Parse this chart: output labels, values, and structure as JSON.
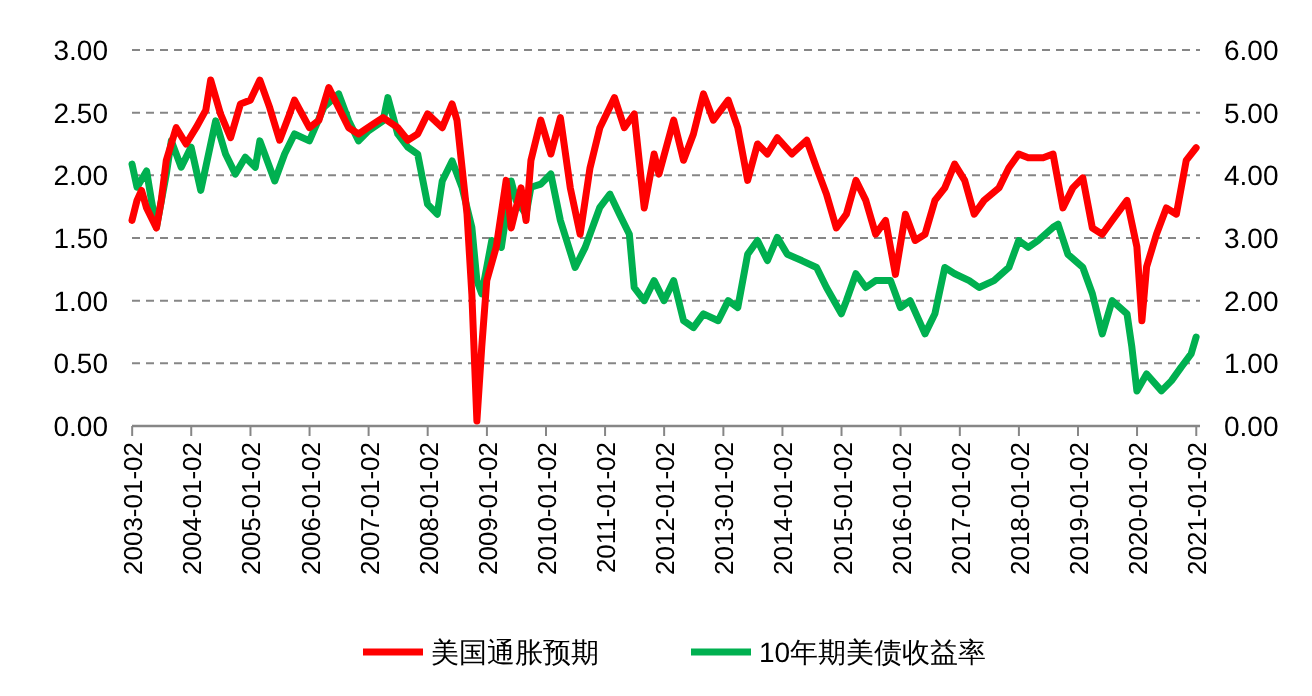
{
  "chart_data": {
    "type": "line",
    "xlim": [
      "2003-01-01",
      "2021-01-25"
    ],
    "xticks": [
      {
        "value": "2003-01-02",
        "label": "2003-01-02"
      },
      {
        "value": "2004-01-02",
        "label": "2004-01-02"
      },
      {
        "value": "2005-01-02",
        "label": "2005-01-02"
      },
      {
        "value": "2006-01-02",
        "label": "2006-01-02"
      },
      {
        "value": "2007-01-02",
        "label": "2007-01-02"
      },
      {
        "value": "2008-01-02",
        "label": "2008-01-02"
      },
      {
        "value": "2009-01-02",
        "label": "2009-01-02"
      },
      {
        "value": "2010-01-02",
        "label": "2010-01-02"
      },
      {
        "value": "2011-01-02",
        "label": "2011-01-02"
      },
      {
        "value": "2012-01-02",
        "label": "2012-01-02"
      },
      {
        "value": "2013-01-02",
        "label": "2013-01-02"
      },
      {
        "value": "2014-01-02",
        "label": "2014-01-02"
      },
      {
        "value": "2015-01-02",
        "label": "2015-01-02"
      },
      {
        "value": "2016-01-02",
        "label": "2016-01-02"
      },
      {
        "value": "2017-01-02",
        "label": "2017-01-02"
      },
      {
        "value": "2018-01-02",
        "label": "2018-01-02"
      },
      {
        "value": "2019-01-02",
        "label": "2019-01-02"
      },
      {
        "value": "2020-01-02",
        "label": "2020-01-02"
      },
      {
        "value": "2021-01-02",
        "label": "2021-01-02"
      }
    ],
    "ylim": [
      0,
      3
    ],
    "yticks": [
      {
        "value": 0,
        "label": "0.00"
      },
      {
        "value": 0.5,
        "label": "0.50"
      },
      {
        "value": 1,
        "label": "1.00"
      },
      {
        "value": 1.5,
        "label": "1.50"
      },
      {
        "value": 2,
        "label": "2.00"
      },
      {
        "value": 2.5,
        "label": "2.50"
      },
      {
        "value": 3,
        "label": "3.00"
      }
    ],
    "y2lim": [
      0,
      6
    ],
    "y2ticks": [
      {
        "value": 0,
        "label": "0.00"
      },
      {
        "value": 1,
        "label": "1.00"
      },
      {
        "value": 2,
        "label": "2.00"
      },
      {
        "value": 3,
        "label": "3.00"
      },
      {
        "value": 4,
        "label": "4.00"
      },
      {
        "value": 5,
        "label": "5.00"
      },
      {
        "value": 6,
        "label": "6.00"
      }
    ],
    "grid": "y",
    "legend": "bottom",
    "series": [
      {
        "name": "美国通胀预期",
        "color": "#ff0000",
        "x": [
          "2003-01",
          "2003-02",
          "2003-03",
          "2003-04",
          "2003-06",
          "2003-07",
          "2003-08",
          "2003-10",
          "2003-12",
          "2004-02",
          "2004-04",
          "2004-05",
          "2004-07",
          "2004-09",
          "2004-11",
          "2005-01",
          "2005-03",
          "2005-05",
          "2005-07",
          "2005-09",
          "2005-10",
          "2006-01",
          "2006-03",
          "2006-05",
          "2006-07",
          "2006-09",
          "2006-11",
          "2007-02",
          "2007-04",
          "2007-07",
          "2007-09",
          "2007-11",
          "2008-01",
          "2008-04",
          "2008-06",
          "2008-07",
          "2008-09",
          "2008-10",
          "2008-11",
          "2008-12",
          "2009-01",
          "2009-03",
          "2009-05",
          "2009-06",
          "2009-08",
          "2009-09",
          "2009-10",
          "2009-12",
          "2010-02",
          "2010-04",
          "2010-06",
          "2010-08",
          "2010-10",
          "2010-12",
          "2011-03",
          "2011-05",
          "2011-07",
          "2011-09",
          "2011-11",
          "2011-12",
          "2012-03",
          "2012-05",
          "2012-07",
          "2012-09",
          "2012-11",
          "2013-02",
          "2013-04",
          "2013-06",
          "2013-08",
          "2013-10",
          "2013-12",
          "2014-03",
          "2014-06",
          "2014-08",
          "2014-10",
          "2014-12",
          "2015-02",
          "2015-04",
          "2015-06",
          "2015-08",
          "2015-10",
          "2015-12",
          "2016-02",
          "2016-04",
          "2016-06",
          "2016-08",
          "2016-10",
          "2016-12",
          "2017-02",
          "2017-04",
          "2017-06",
          "2017-09",
          "2017-11",
          "2018-01",
          "2018-03",
          "2018-06",
          "2018-08",
          "2018-10",
          "2018-12",
          "2019-02",
          "2019-04",
          "2019-06",
          "2019-08",
          "2019-11",
          "2020-01",
          "2020-02",
          "2020-03",
          "2020-05",
          "2020-07",
          "2020-09",
          "2020-11",
          "2021-01"
        ],
        "values": [
          1.64,
          1.8,
          1.88,
          1.74,
          1.58,
          1.8,
          2.12,
          2.38,
          2.25,
          2.38,
          2.52,
          2.76,
          2.49,
          2.3,
          2.57,
          2.6,
          2.76,
          2.54,
          2.28,
          2.49,
          2.6,
          2.38,
          2.44,
          2.7,
          2.54,
          2.38,
          2.33,
          2.41,
          2.46,
          2.38,
          2.28,
          2.33,
          2.49,
          2.38,
          2.57,
          2.44,
          1.69,
          1.05,
          0.04,
          0.63,
          1.16,
          1.43,
          1.96,
          1.58,
          1.9,
          1.64,
          2.12,
          2.44,
          2.17,
          2.46,
          1.9,
          1.53,
          2.06,
          2.38,
          2.62,
          2.38,
          2.49,
          1.74,
          2.17,
          2.01,
          2.44,
          2.12,
          2.33,
          2.65,
          2.44,
          2.6,
          2.38,
          1.96,
          2.25,
          2.17,
          2.3,
          2.17,
          2.28,
          2.06,
          1.85,
          1.58,
          1.69,
          1.96,
          1.8,
          1.53,
          1.64,
          1.21,
          1.69,
          1.48,
          1.53,
          1.8,
          1.9,
          2.09,
          1.96,
          1.69,
          1.8,
          1.9,
          2.06,
          2.17,
          2.14,
          2.14,
          2.17,
          1.74,
          1.9,
          1.98,
          1.58,
          1.53,
          1.64,
          1.8,
          1.43,
          0.84,
          1.27,
          1.53,
          1.74,
          1.69,
          2.12,
          2.22
        ]
      },
      {
        "name": "10年期美债收益率",
        "color": "#00b050",
        "axis": "y2",
        "x": [
          "2003-01",
          "2003-02",
          "2003-04",
          "2003-05",
          "2003-06",
          "2003-08",
          "2003-09",
          "2003-11",
          "2004-01",
          "2004-03",
          "2004-06",
          "2004-08",
          "2004-10",
          "2004-12",
          "2005-02",
          "2005-03",
          "2005-06",
          "2005-08",
          "2005-10",
          "2006-01",
          "2006-04",
          "2006-07",
          "2006-09",
          "2006-11",
          "2007-01",
          "2007-04",
          "2007-05",
          "2007-07",
          "2007-09",
          "2007-11",
          "2008-01",
          "2008-03",
          "2008-04",
          "2008-06",
          "2008-08",
          "2008-10",
          "2008-11",
          "2008-12",
          "2009-02",
          "2009-04",
          "2009-06",
          "2009-07",
          "2009-09",
          "2009-10",
          "2009-12",
          "2010-02",
          "2010-04",
          "2010-07",
          "2010-09",
          "2010-12",
          "2011-02",
          "2011-04",
          "2011-06",
          "2011-07",
          "2011-09",
          "2011-11",
          "2012-01",
          "2012-03",
          "2012-05",
          "2012-07",
          "2012-09",
          "2012-12",
          "2013-02",
          "2013-04",
          "2013-06",
          "2013-08",
          "2013-10",
          "2013-12",
          "2014-02",
          "2014-05",
          "2014-08",
          "2014-10",
          "2015-01",
          "2015-02",
          "2015-04",
          "2015-06",
          "2015-08",
          "2015-11",
          "2016-01",
          "2016-03",
          "2016-06",
          "2016-08",
          "2016-10",
          "2016-12",
          "2017-03",
          "2017-05",
          "2017-08",
          "2017-11",
          "2018-01",
          "2018-03",
          "2018-05",
          "2018-08",
          "2018-09",
          "2018-11",
          "2019-02",
          "2019-04",
          "2019-06",
          "2019-08",
          "2019-11",
          "2019-12",
          "2020-01",
          "2020-03",
          "2020-06",
          "2020-08",
          "2020-10",
          "2020-12",
          "2021-01"
        ],
        "values": [
          4.18,
          3.81,
          4.07,
          3.6,
          3.17,
          4.02,
          4.55,
          4.13,
          4.45,
          3.76,
          4.87,
          4.34,
          4.02,
          4.29,
          4.13,
          4.55,
          3.91,
          4.34,
          4.66,
          4.55,
          5.09,
          5.3,
          4.87,
          4.55,
          4.71,
          4.87,
          5.24,
          4.66,
          4.45,
          4.34,
          3.54,
          3.38,
          3.91,
          4.23,
          3.81,
          3.17,
          2.32,
          2.11,
          2.96,
          2.85,
          3.91,
          3.6,
          3.38,
          3.81,
          3.86,
          4.02,
          3.28,
          2.53,
          2.85,
          3.49,
          3.7,
          3.38,
          3.06,
          2.21,
          2.0,
          2.32,
          2.0,
          2.32,
          1.68,
          1.57,
          1.79,
          1.68,
          2.0,
          1.89,
          2.74,
          2.96,
          2.64,
          3.01,
          2.74,
          2.64,
          2.53,
          2.21,
          1.79,
          2.0,
          2.43,
          2.21,
          2.32,
          2.32,
          1.89,
          2.0,
          1.47,
          1.79,
          2.53,
          2.43,
          2.32,
          2.21,
          2.32,
          2.53,
          2.96,
          2.85,
          2.96,
          3.17,
          3.22,
          2.74,
          2.53,
          2.11,
          1.47,
          2.0,
          1.79,
          1.26,
          0.56,
          0.83,
          0.56,
          0.72,
          0.94,
          1.15,
          1.42
        ]
      }
    ]
  }
}
